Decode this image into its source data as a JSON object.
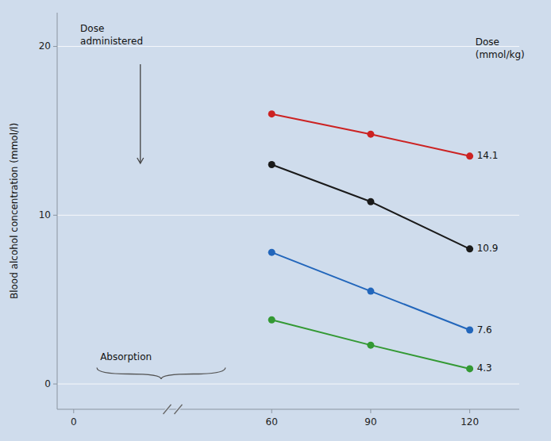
{
  "chart_data": {
    "type": "line",
    "y_label": "Blood alcohol concentration (mmol/l)",
    "x": [
      60,
      90,
      120
    ],
    "series": [
      {
        "name": "14.1",
        "color": "#cc2222",
        "values": [
          16.0,
          14.8,
          13.5
        ]
      },
      {
        "name": "10.9",
        "color": "#1a1a1a",
        "values": [
          13.0,
          10.8,
          8.0
        ]
      },
      {
        "name": "7.6",
        "color": "#2266bb",
        "values": [
          7.8,
          5.5,
          3.2
        ]
      },
      {
        "name": "4.3",
        "color": "#339933",
        "values": [
          3.8,
          2.3,
          0.9
        ]
      }
    ],
    "xlim": [
      -5,
      135
    ],
    "ylim": [
      -1.5,
      22
    ],
    "xticks": [
      0,
      60,
      90,
      120
    ],
    "yticks": [
      0,
      10,
      20
    ],
    "grid": true,
    "marker": "circle",
    "annotations": [
      "Dose",
      "(mmol/kg)",
      "Dose",
      "administered",
      "Absorption"
    ]
  }
}
